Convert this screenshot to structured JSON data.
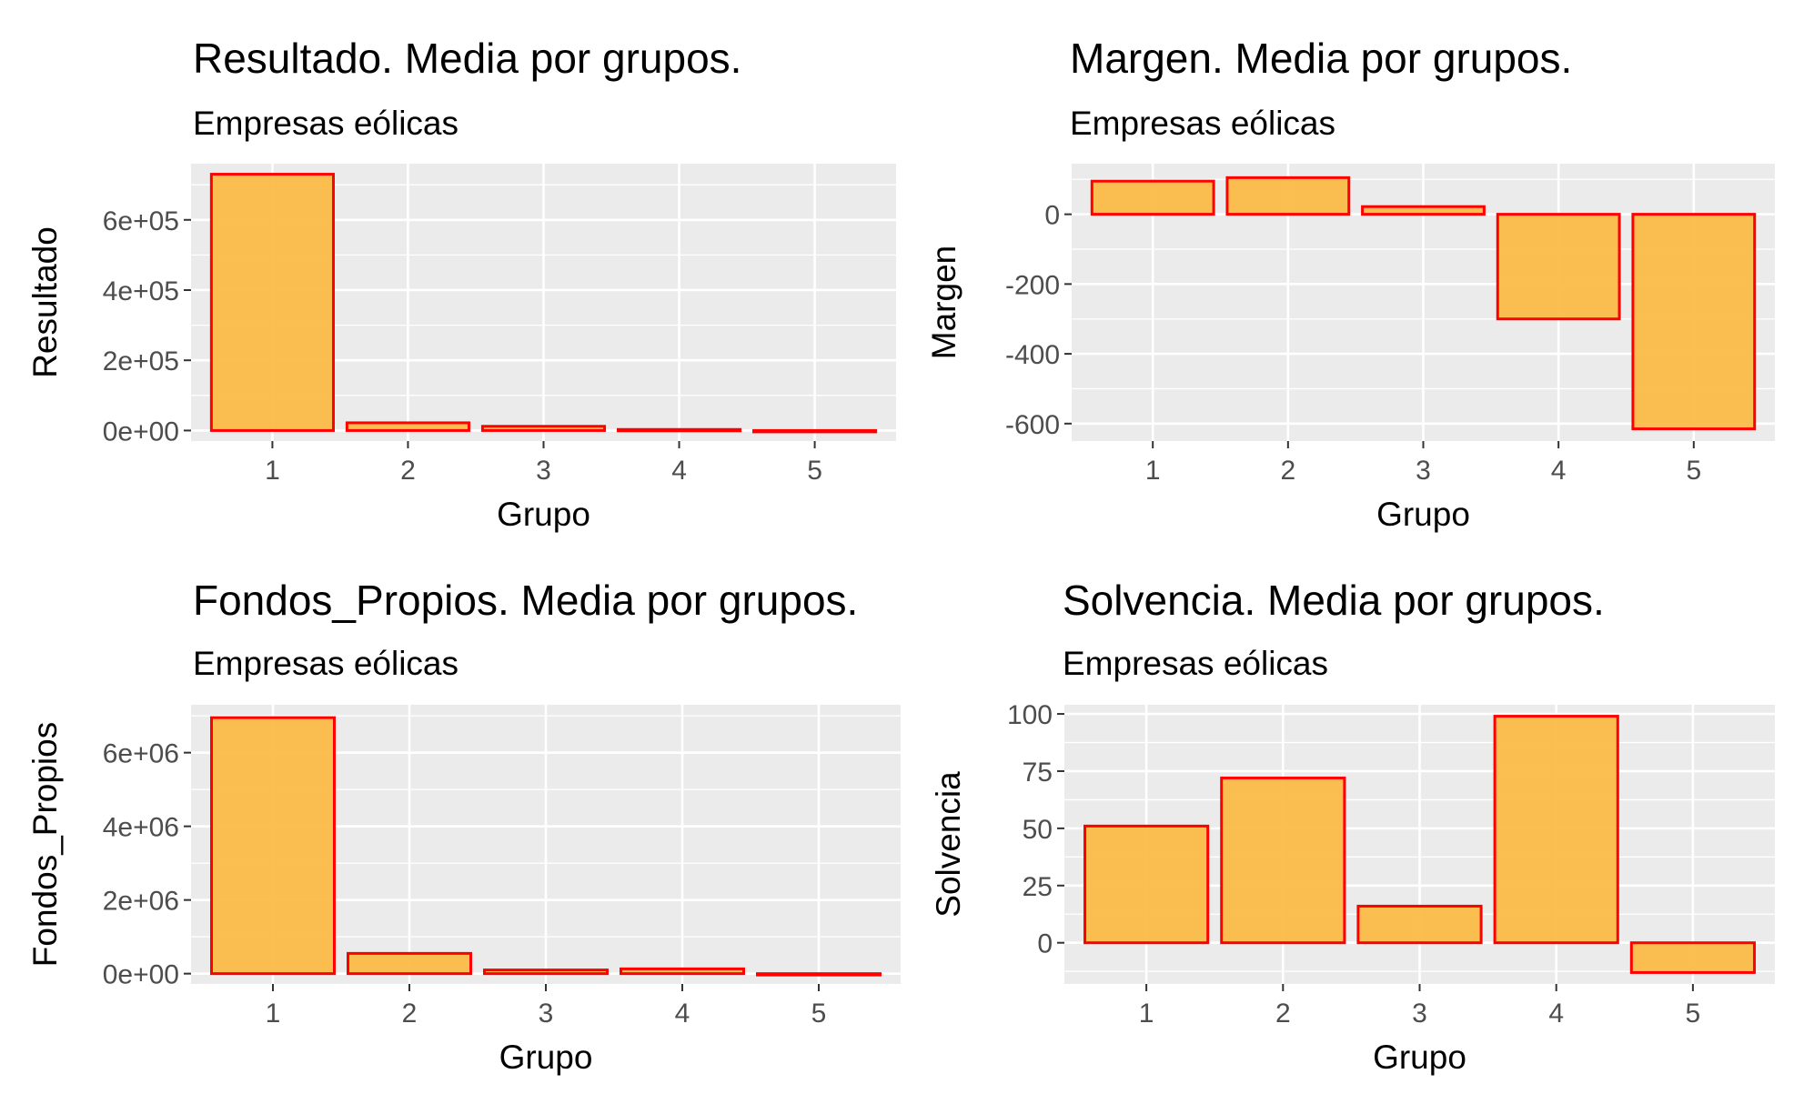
{
  "chart_data": [
    {
      "type": "bar",
      "title": "Resultado. Media por grupos.",
      "subtitle": "Empresas eólicas",
      "xlabel": "Grupo",
      "ylabel": "Resultado",
      "categories": [
        "1",
        "2",
        "3",
        "4",
        "5"
      ],
      "values": [
        730000,
        22000,
        12000,
        3000,
        -2000
      ],
      "ylim": [
        -30000,
        760000
      ],
      "yticks": [
        0,
        200000,
        400000,
        600000
      ],
      "ytick_labels": [
        "0e+00",
        "2e+05",
        "4e+05",
        "6e+05"
      ],
      "fill": "#FBBA48",
      "stroke": "#FF0000",
      "panel_bg": "#EBEBEB",
      "grid": true,
      "legend": "none"
    },
    {
      "type": "bar",
      "title": "Margen. Media por grupos.",
      "subtitle": "Empresas eólicas",
      "xlabel": "Grupo",
      "ylabel": "Margen",
      "categories": [
        "1",
        "2",
        "3",
        "4",
        "5"
      ],
      "values": [
        95,
        105,
        22,
        -300,
        -615
      ],
      "ylim": [
        -650,
        145
      ],
      "yticks": [
        0,
        -200,
        -400,
        -600
      ],
      "ytick_labels": [
        "0",
        "-200",
        "-400",
        "-600"
      ],
      "fill": "#FBBA48",
      "stroke": "#FF0000",
      "panel_bg": "#EBEBEB",
      "grid": true,
      "legend": "none"
    },
    {
      "type": "bar",
      "title": "Fondos_Propios. Media por grupos.",
      "subtitle": "Empresas eólicas",
      "xlabel": "Grupo",
      "ylabel": "Fondos_Propios",
      "categories": [
        "1",
        "2",
        "3",
        "4",
        "5"
      ],
      "values": [
        6950000,
        550000,
        100000,
        130000,
        -20000
      ],
      "ylim": [
        -280000,
        7300000
      ],
      "yticks": [
        0,
        2000000,
        4000000,
        6000000
      ],
      "ytick_labels": [
        "0e+00",
        "2e+06",
        "4e+06",
        "6e+06"
      ],
      "fill": "#FBBA48",
      "stroke": "#FF0000",
      "panel_bg": "#EBEBEB",
      "grid": true,
      "legend": "none"
    },
    {
      "type": "bar",
      "title": "Solvencia. Media por grupos.",
      "subtitle": "Empresas eólicas",
      "xlabel": "Grupo",
      "ylabel": "Solvencia",
      "categories": [
        "1",
        "2",
        "3",
        "4",
        "5"
      ],
      "values": [
        51,
        72,
        16,
        99,
        -13
      ],
      "ylim": [
        -18,
        104
      ],
      "yticks": [
        0,
        25,
        50,
        75,
        100
      ],
      "ytick_labels": [
        "0",
        "25",
        "50",
        "75",
        "100"
      ],
      "fill": "#FBBA48",
      "stroke": "#FF0000",
      "panel_bg": "#EBEBEB",
      "grid": true,
      "legend": "none"
    }
  ]
}
